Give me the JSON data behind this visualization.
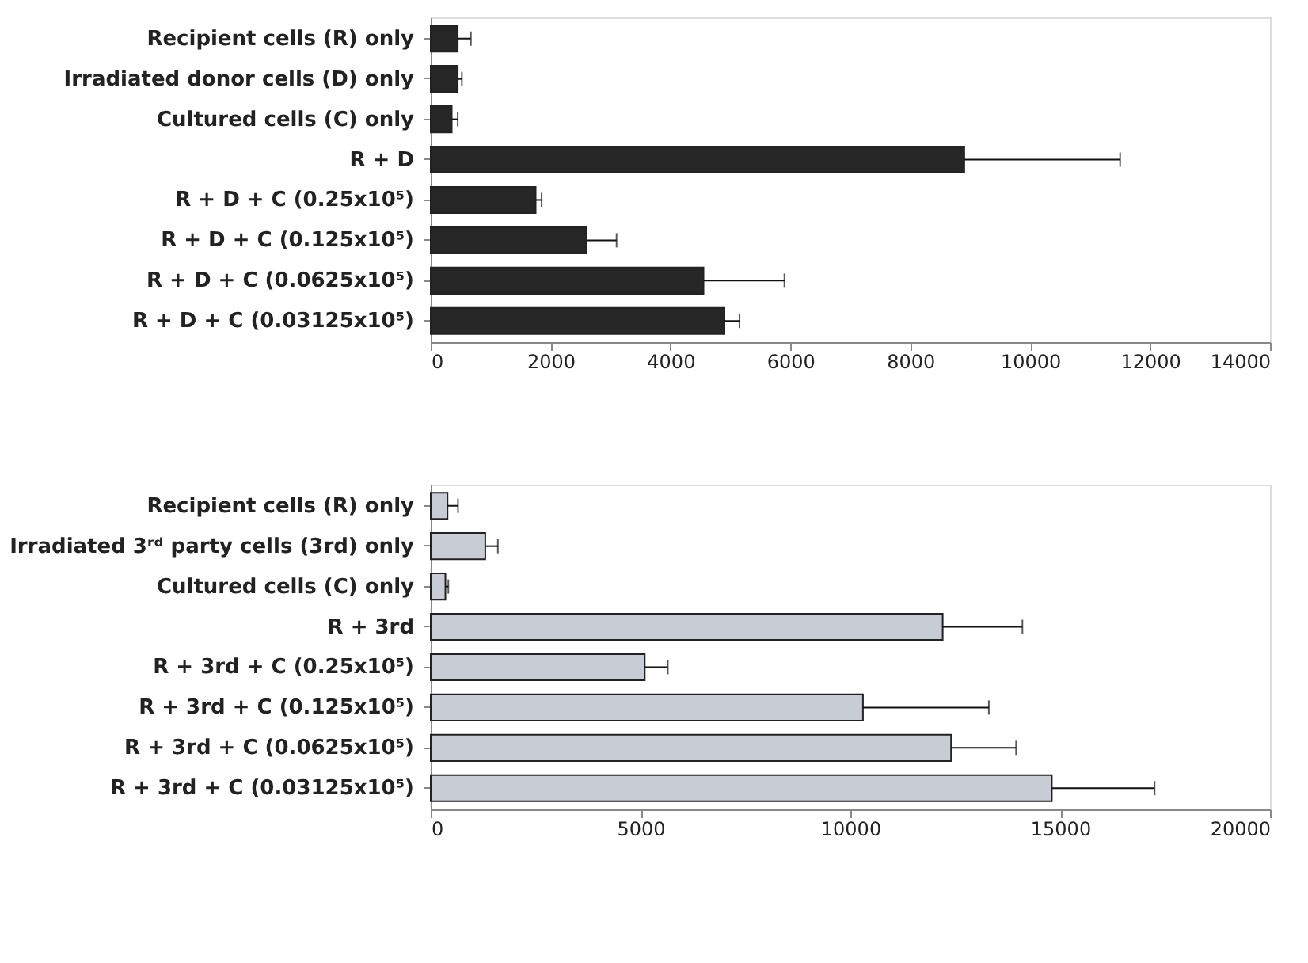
{
  "chart_data": [
    {
      "type": "bar",
      "orientation": "horizontal",
      "categories": [
        "Recipient cells (R) only",
        "Irradiated donor cells (D) only",
        "Cultured cells (C) only",
        "R + D",
        "R + D + C (0.25x10⁵)",
        "R + D + C (0.125x10⁵)",
        "R + D + C (0.0625x10⁵)",
        "R + D + C (0.03125x10⁵)"
      ],
      "values": [
        450,
        450,
        350,
        8900,
        1750,
        2600,
        4550,
        4900
      ],
      "errors": [
        [
          450,
          670
        ],
        [
          450,
          520
        ],
        [
          350,
          450
        ],
        [
          8900,
          11500
        ],
        [
          1750,
          1850
        ],
        [
          2600,
          3100
        ],
        [
          4550,
          5900
        ],
        [
          4900,
          5150
        ]
      ],
      "color": "#262626",
      "xlim": [
        0,
        14000
      ],
      "xticks": [
        0,
        2000,
        4000,
        6000,
        8000,
        10000,
        12000,
        14000
      ],
      "grid": false
    },
    {
      "type": "bar",
      "orientation": "horizontal",
      "categories": [
        "Recipient cells (R) only",
        "Irradiated 3ʳᵈ party cells (3rd) only",
        "Cultured cells (C) only",
        "R + 3rd",
        "R + 3rd + C (0.25x10⁵)",
        "R + 3rd + C (0.125x10⁵)",
        "R + 3rd + C (0.0625x10⁵)",
        "R + 3rd + C (0.03125x10⁵)"
      ],
      "values": [
        400,
        1300,
        350,
        12200,
        5100,
        10300,
        12400,
        14800
      ],
      "errors": [
        [
          400,
          650
        ],
        [
          1300,
          1600
        ],
        [
          350,
          420
        ],
        [
          12200,
          14100
        ],
        [
          5100,
          5650
        ],
        [
          10300,
          13300
        ],
        [
          12400,
          13950
        ],
        [
          14800,
          17250
        ]
      ],
      "color": "#c8ccd4",
      "xlim": [
        0,
        20000
      ],
      "xticks": [
        0,
        5000,
        10000,
        15000,
        20000
      ],
      "grid": false
    }
  ]
}
